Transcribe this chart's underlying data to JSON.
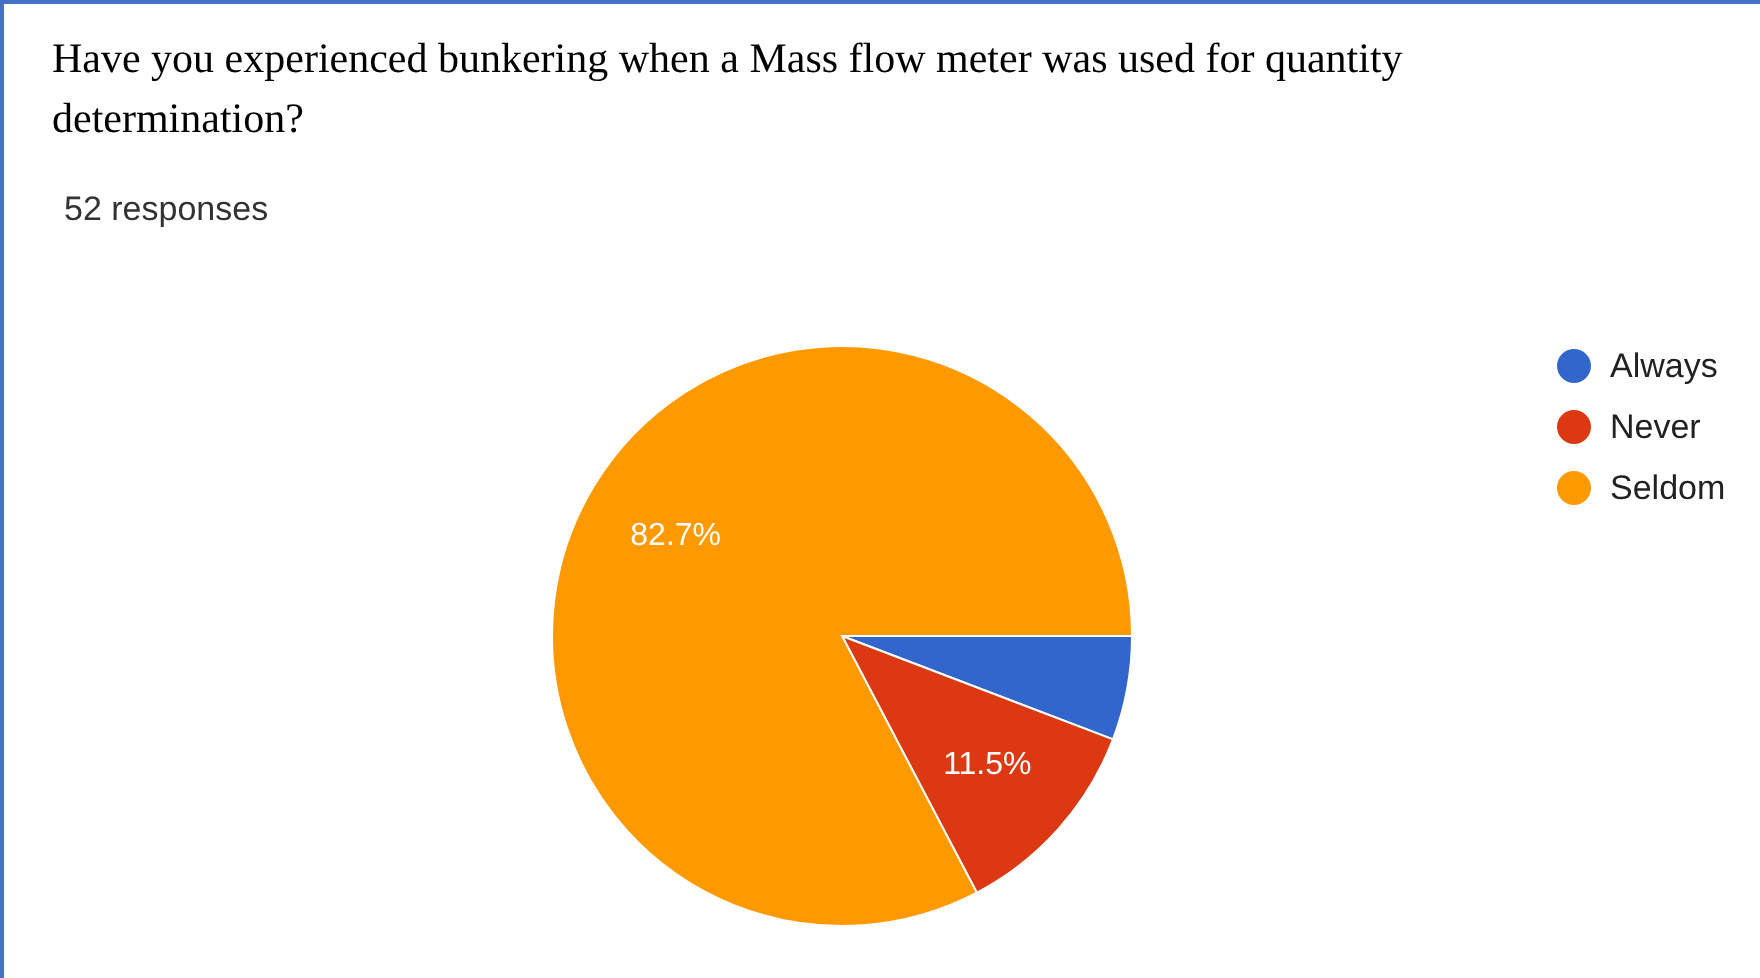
{
  "chart_data": {
    "type": "pie",
    "title": "Have you experienced bunkering when a Mass flow meter was used for quantity determination?",
    "subtitle": "52 responses",
    "categories": [
      "Always",
      "Never",
      "Seldom"
    ],
    "values": [
      5.8,
      11.5,
      82.7
    ],
    "value_labels": [
      null,
      "11.5%",
      "82.7%"
    ],
    "colors": [
      "#3366cc",
      "#dc3912",
      "#ff9900"
    ],
    "legend": "right"
  }
}
